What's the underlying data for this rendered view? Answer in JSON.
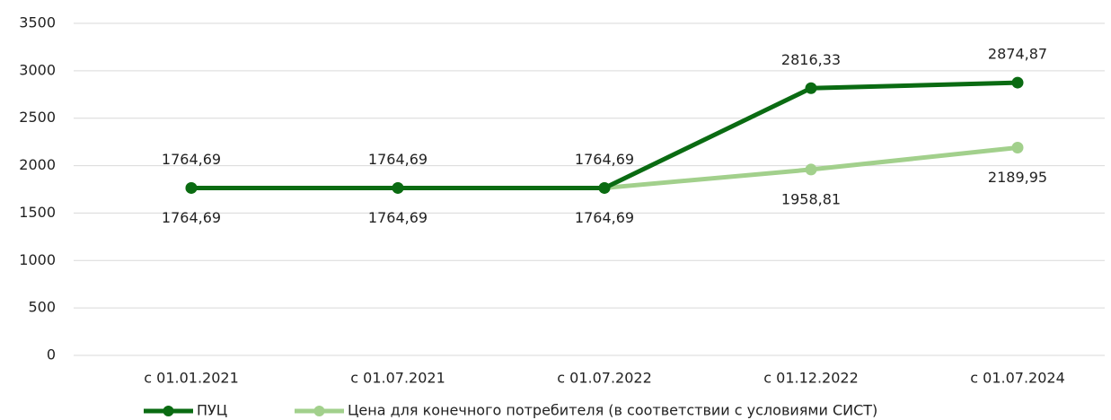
{
  "chart_data": {
    "type": "line",
    "categories": [
      "с 01.01.2021",
      "с 01.07.2021",
      "с 01.07.2022",
      "с 01.12.2022",
      "с 01.07.2024"
    ],
    "series": [
      {
        "name": "ПУЦ",
        "color": "#0a6b12",
        "values": [
          1764.69,
          1764.69,
          1764.69,
          2816.33,
          2874.87
        ],
        "value_labels": [
          "1764,69",
          "1764,69",
          "1764,69",
          "2816,33",
          "2874,87"
        ]
      },
      {
        "name": "Цена для конечного потребителя (в соответствии с условиями СИСТ)",
        "color": "#a2d08c",
        "values": [
          1764.69,
          1764.69,
          1764.69,
          1958.81,
          2189.95
        ],
        "value_labels": [
          "1764,69",
          "1764,69",
          "1764,69",
          "1958,81",
          "2189,95"
        ]
      }
    ],
    "ylim": [
      0,
      3500
    ],
    "yticks": [
      0,
      500,
      1000,
      1500,
      2000,
      2500,
      3000,
      3500
    ],
    "grid": true,
    "legend": "bottom"
  }
}
